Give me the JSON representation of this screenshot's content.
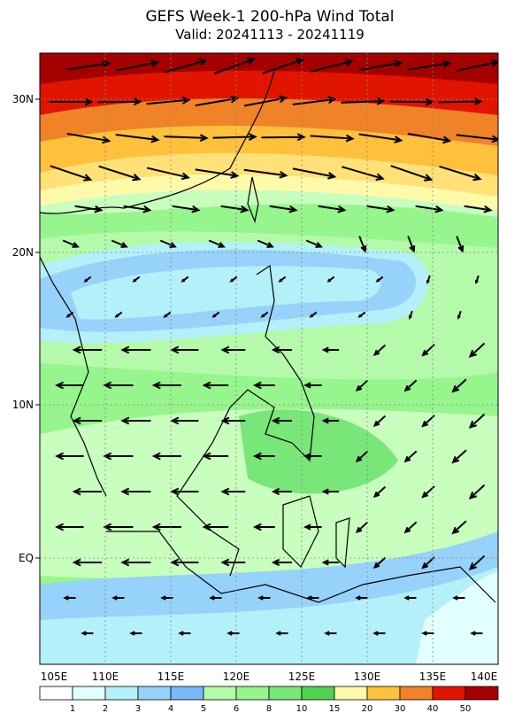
{
  "header": {
    "title": "GEFS Week-1 200-hPa Wind Total",
    "subtitle": "Valid: 20241113 - 20241119"
  },
  "map": {
    "lat_labels": [
      "30N",
      "20N",
      "10N",
      "EQ"
    ],
    "lon_labels": [
      "105E",
      "110E",
      "115E",
      "120E",
      "125E",
      "130E",
      "135E",
      "140E"
    ]
  },
  "colorbar": {
    "levels": [
      "1",
      "2",
      "3",
      "4",
      "5",
      "6",
      "8",
      "10",
      "15",
      "20",
      "30",
      "40",
      "50"
    ]
  }
}
